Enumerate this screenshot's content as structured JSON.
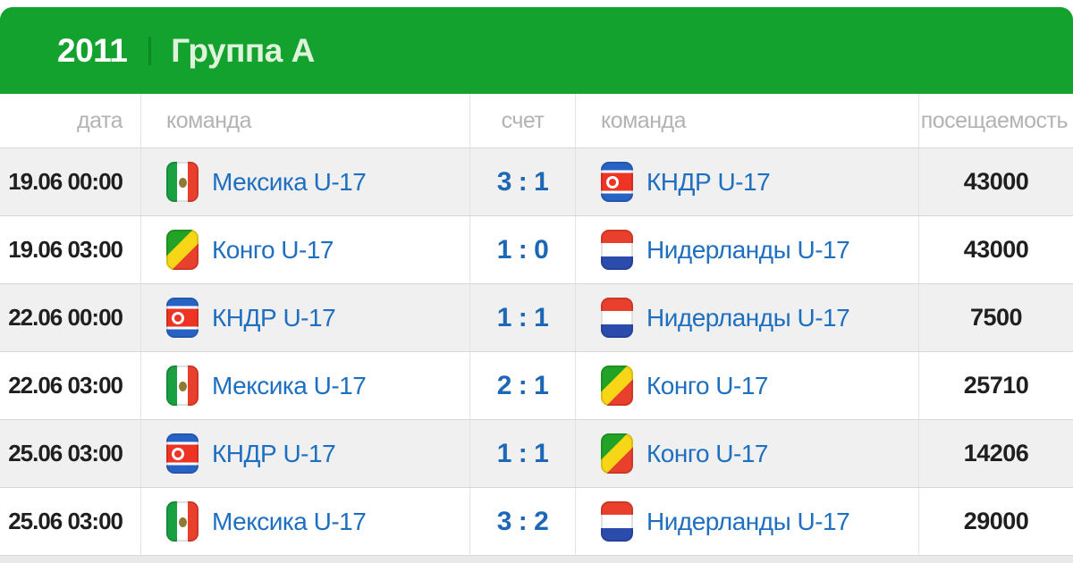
{
  "header": {
    "year": "2011",
    "group": "Группа А"
  },
  "table": {
    "columns": [
      "дата",
      "команда",
      "счет",
      "команда",
      "посещаемость"
    ],
    "rows": [
      {
        "date": "19.06 00:00",
        "home": {
          "name": "Мексика U-17",
          "flag": "mexico"
        },
        "score": "3 : 1",
        "away": {
          "name": "КНДР U-17",
          "flag": "north-korea"
        },
        "attendance": "43000"
      },
      {
        "date": "19.06 03:00",
        "home": {
          "name": "Конго U-17",
          "flag": "congo"
        },
        "score": "1 : 0",
        "away": {
          "name": "Нидерланды U-17",
          "flag": "netherlands"
        },
        "attendance": "43000"
      },
      {
        "date": "22.06 00:00",
        "home": {
          "name": "КНДР U-17",
          "flag": "north-korea"
        },
        "score": "1 : 1",
        "away": {
          "name": "Нидерланды U-17",
          "flag": "netherlands"
        },
        "attendance": "7500"
      },
      {
        "date": "22.06 03:00",
        "home": {
          "name": "Мексика U-17",
          "flag": "mexico"
        },
        "score": "2 : 1",
        "away": {
          "name": "Конго U-17",
          "flag": "congo"
        },
        "attendance": "25710"
      },
      {
        "date": "25.06 03:00",
        "home": {
          "name": "КНДР U-17",
          "flag": "north-korea"
        },
        "score": "1 : 1",
        "away": {
          "name": "Конго U-17",
          "flag": "congo"
        },
        "attendance": "14206"
      },
      {
        "date": "25.06 03:00",
        "home": {
          "name": "Мексика U-17",
          "flag": "mexico"
        },
        "score": "3 : 2",
        "away": {
          "name": "Нидерланды U-17",
          "flag": "netherlands"
        },
        "attendance": "29000"
      }
    ]
  },
  "colors": {
    "accent_green": "#14a22e",
    "divider_green": "#0c8a22",
    "link_blue": "#1e6fc0",
    "score_blue": "#1d68b6",
    "alt_row_bg": "#f0f0f0",
    "header_label_gray": "#b3b3b3",
    "dark_text": "#1f1f1f"
  }
}
